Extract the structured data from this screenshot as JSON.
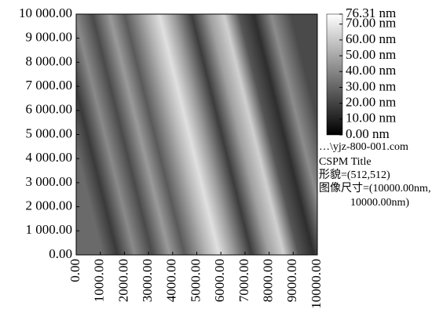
{
  "chart_data": {
    "type": "heatmap",
    "xlim": [
      0,
      10000
    ],
    "ylim": [
      0,
      10000
    ],
    "xticks": [
      {
        "value": 0,
        "label": "0.00"
      },
      {
        "value": 1000,
        "label": "1000.00"
      },
      {
        "value": 2000,
        "label": "2000.00"
      },
      {
        "value": 3000,
        "label": "3000.00"
      },
      {
        "value": 4000,
        "label": "4000.00"
      },
      {
        "value": 5000,
        "label": "5000.00"
      },
      {
        "value": 6000,
        "label": "6000.00"
      },
      {
        "value": 7000,
        "label": "7000.00"
      },
      {
        "value": 8000,
        "label": "8000.00"
      },
      {
        "value": 9000,
        "label": "9000.00"
      },
      {
        "value": 10000,
        "label": "10000.00"
      }
    ],
    "yticks": [
      {
        "value": 0,
        "label": "0.00"
      },
      {
        "value": 1000,
        "label": "1 000.00"
      },
      {
        "value": 2000,
        "label": "2 000.00"
      },
      {
        "value": 3000,
        "label": "3 000.00"
      },
      {
        "value": 4000,
        "label": "4 000.00"
      },
      {
        "value": 5000,
        "label": "5 000.00"
      },
      {
        "value": 6000,
        "label": "6 000.00"
      },
      {
        "value": 7000,
        "label": "7 000.00"
      },
      {
        "value": 8000,
        "label": "8 000.00"
      },
      {
        "value": 9000,
        "label": "9 000.00"
      },
      {
        "value": 10000,
        "label": "10 000.00"
      }
    ],
    "colorbar": {
      "range": [
        0,
        76.31
      ],
      "ticks": [
        {
          "value": 76.31,
          "label": "76.31 nm"
        },
        {
          "value": 70,
          "label": "70.00 nm"
        },
        {
          "value": 60,
          "label": "60.00 nm"
        },
        {
          "value": 50,
          "label": "50.00 nm"
        },
        {
          "value": 40,
          "label": "40.00 nm"
        },
        {
          "value": 30,
          "label": "30.00 nm"
        },
        {
          "value": 20,
          "label": "20.00 nm"
        },
        {
          "value": 10,
          "label": "10.00 nm"
        },
        {
          "value": 0,
          "label": "0.00 nm"
        }
      ]
    },
    "info": [
      "…\\yjz-800-001.com",
      "CSPM Title",
      "形貌=(512,512)",
      "图像尺寸=(10000.00nm,",
      "10000.00nm)"
    ]
  }
}
